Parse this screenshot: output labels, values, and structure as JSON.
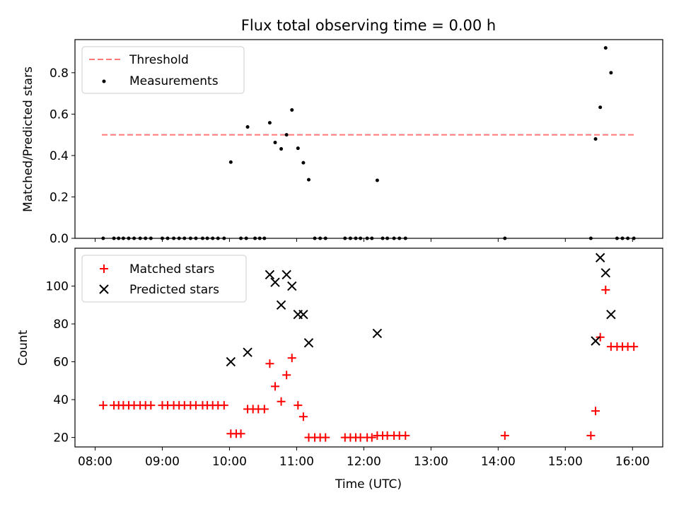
{
  "chart_data": [
    {
      "type": "scatter",
      "title": "Flux total observing time = 0.00 h",
      "xlabel": "",
      "ylabel": "Matched/Predicted stars",
      "xlim": [
        7.7,
        16.45
      ],
      "ylim": [
        0,
        0.96
      ],
      "yticks": [
        0.0,
        0.2,
        0.4,
        0.6,
        0.8
      ],
      "ytick_labels": [
        "0.0",
        "0.2",
        "0.4",
        "0.6",
        "0.8"
      ],
      "legend_position": "top-left",
      "threshold": {
        "name": "Threshold",
        "value": 0.5,
        "x_range": [
          8.1,
          16.05
        ],
        "color": "#ff7777",
        "style": "dashed"
      },
      "series": [
        {
          "name": "Measurements",
          "marker": "dot",
          "color": "#000000",
          "x": [
            8.12,
            8.28,
            8.35,
            8.42,
            8.5,
            8.58,
            8.67,
            8.75,
            8.83,
            9.0,
            9.08,
            9.17,
            9.25,
            9.33,
            9.42,
            9.5,
            9.6,
            9.67,
            9.75,
            9.83,
            9.92,
            10.02,
            10.17,
            10.25,
            10.27,
            10.38,
            10.45,
            10.52,
            10.6,
            10.68,
            10.77,
            10.85,
            10.93,
            11.02,
            11.1,
            11.18,
            11.27,
            11.35,
            11.43,
            11.72,
            11.8,
            11.88,
            11.95,
            12.05,
            12.12,
            12.2,
            12.28,
            12.35,
            12.45,
            12.53,
            12.62,
            14.1,
            15.38,
            15.45,
            15.52,
            15.6,
            15.68,
            15.77,
            15.85,
            15.93,
            16.02
          ],
          "y": [
            0,
            0,
            0,
            0,
            0,
            0,
            0,
            0,
            0,
            0,
            0,
            0,
            0,
            0,
            0,
            0,
            0,
            0,
            0,
            0,
            0,
            0.368,
            0,
            0,
            0.538,
            0,
            0,
            0,
            0.558,
            0.463,
            0.432,
            0.5,
            0.62,
            0.435,
            0.365,
            0.283,
            0,
            0,
            0,
            0,
            0,
            0,
            0,
            0,
            0,
            0.28,
            0,
            0,
            0,
            0,
            0,
            0,
            0,
            0.48,
            0.633,
            0.92,
            0.8,
            0,
            0,
            0,
            0
          ]
        }
      ]
    },
    {
      "type": "scatter",
      "title": "",
      "xlabel": "Time (UTC)",
      "ylabel": "Count",
      "xlim": [
        7.7,
        16.45
      ],
      "ylim": [
        15,
        120
      ],
      "yticks": [
        20,
        40,
        60,
        80,
        100
      ],
      "ytick_labels": [
        "20",
        "40",
        "60",
        "80",
        "100"
      ],
      "xticks": [
        8,
        9,
        10,
        11,
        12,
        13,
        14,
        15,
        16
      ],
      "xtick_labels": [
        "08:00",
        "09:00",
        "10:00",
        "11:00",
        "12:00",
        "13:00",
        "14:00",
        "15:00",
        "16:00"
      ],
      "legend_position": "top-left",
      "series": [
        {
          "name": "Matched stars",
          "marker": "plus",
          "color": "#ff0000",
          "x": [
            8.12,
            8.28,
            8.35,
            8.42,
            8.5,
            8.58,
            8.67,
            8.75,
            8.83,
            9.0,
            9.08,
            9.17,
            9.25,
            9.33,
            9.42,
            9.5,
            9.6,
            9.67,
            9.75,
            9.83,
            9.92,
            10.02,
            10.1,
            10.17,
            10.27,
            10.35,
            10.43,
            10.52,
            10.6,
            10.68,
            10.77,
            10.85,
            10.93,
            11.02,
            11.1,
            11.18,
            11.27,
            11.35,
            11.43,
            11.72,
            11.8,
            11.88,
            11.95,
            12.05,
            12.12,
            12.2,
            12.28,
            12.35,
            12.45,
            12.53,
            12.62,
            14.1,
            15.38,
            15.45,
            15.52,
            15.6,
            15.68,
            15.77,
            15.85,
            15.93,
            16.02
          ],
          "y": [
            37,
            37,
            37,
            37,
            37,
            37,
            37,
            37,
            37,
            37,
            37,
            37,
            37,
            37,
            37,
            37,
            37,
            37,
            37,
            37,
            37,
            22,
            22,
            22,
            35,
            35,
            35,
            35,
            59,
            47,
            39,
            53,
            62,
            37,
            31,
            20,
            20,
            20,
            20,
            20,
            20,
            20,
            20,
            20,
            20,
            21,
            21,
            21,
            21,
            21,
            21,
            21,
            21,
            34,
            73,
            98,
            68,
            68,
            68,
            68,
            68
          ]
        },
        {
          "name": "Predicted stars",
          "marker": "x",
          "color": "#000000",
          "x": [
            10.02,
            10.27,
            10.6,
            10.68,
            10.77,
            10.85,
            10.93,
            11.02,
            11.1,
            11.18,
            12.2,
            15.45,
            15.52,
            15.6,
            15.68
          ],
          "y": [
            60,
            65,
            106,
            102,
            90,
            106,
            100,
            85,
            85,
            70,
            75,
            71,
            115,
            107,
            85
          ]
        }
      ]
    }
  ]
}
